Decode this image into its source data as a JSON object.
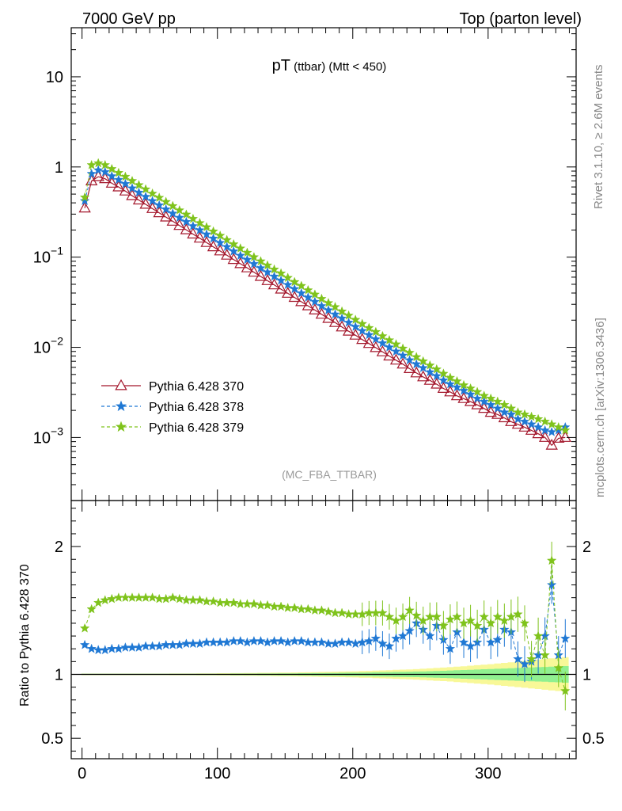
{
  "header": {
    "left": "7000 GeV pp",
    "right": "Top (parton level)"
  },
  "side": {
    "rivet": "Rivet 3.1.10, ≥ 2.6M events",
    "mcplots": "mcplots.cern.ch [arXiv:1306.3436]"
  },
  "main": {
    "title_main": "pT",
    "title_sub": " (ttbar) (Mtt < 450)",
    "analysis_tag": "(MC_FBA_TTBAR)",
    "yticks": [
      {
        "v": 10,
        "base": "10",
        "exp": ""
      },
      {
        "v": 1,
        "base": "1",
        "exp": ""
      },
      {
        "v": 0.1,
        "base": "10",
        "exp": "−1"
      },
      {
        "v": 0.01,
        "base": "10",
        "exp": "−2"
      },
      {
        "v": 0.001,
        "base": "10",
        "exp": "−3"
      }
    ]
  },
  "ratio": {
    "ylabel": "Ratio to Pythia 6.428 370",
    "ticks": [
      {
        "v": 2,
        "label": "2"
      },
      {
        "v": 1,
        "label": "1"
      },
      {
        "v": 0.5,
        "label": "0.5"
      }
    ]
  },
  "colors": {
    "s370": "#a3162b",
    "s378": "#1f78d4",
    "s379": "#7fc31c",
    "band_inner": "#90f090",
    "band_outer": "#f8f898"
  },
  "chart_data": {
    "type": "line",
    "log_y": true,
    "xlim": [
      -8,
      365
    ],
    "ylim": [
      0.0002,
      35
    ],
    "xticks": [
      0,
      100,
      200,
      300
    ],
    "ratio_ylim": [
      0.34,
      2.36
    ],
    "x": [
      2,
      7,
      12,
      17,
      22,
      27,
      32,
      37,
      42,
      47,
      52,
      57,
      62,
      67,
      72,
      77,
      82,
      87,
      92,
      97,
      102,
      107,
      112,
      117,
      122,
      127,
      132,
      137,
      142,
      147,
      152,
      157,
      162,
      167,
      172,
      177,
      182,
      187,
      192,
      197,
      202,
      207,
      212,
      217,
      222,
      227,
      232,
      237,
      242,
      247,
      252,
      257,
      262,
      267,
      272,
      277,
      282,
      287,
      292,
      297,
      302,
      307,
      312,
      317,
      322,
      327,
      332,
      337,
      342,
      347,
      352,
      357
    ],
    "series": [
      {
        "name": "Pythia 6.428 370",
        "values": [
          0.35,
          0.7,
          0.78,
          0.74,
          0.66,
          0.6,
          0.54,
          0.48,
          0.43,
          0.385,
          0.345,
          0.31,
          0.278,
          0.25,
          0.224,
          0.201,
          0.18,
          0.162,
          0.145,
          0.13,
          0.117,
          0.105,
          0.094,
          0.0845,
          0.076,
          0.068,
          0.061,
          0.0548,
          0.0492,
          0.0442,
          0.0397,
          0.0357,
          0.032,
          0.0288,
          0.0259,
          0.0232,
          0.0209,
          0.0188,
          0.0168,
          0.0151,
          0.0136,
          0.0122,
          0.011,
          0.0099,
          0.0089,
          0.008,
          0.0072,
          0.0065,
          0.0058,
          0.0052,
          0.0047,
          0.0043,
          0.0039,
          0.0035,
          0.0032,
          0.0029,
          0.0027,
          0.0025,
          0.0023,
          0.0021,
          0.0019,
          0.0018,
          0.00165,
          0.0015,
          0.0014,
          0.0013,
          0.0012,
          0.0011,
          0.001,
          0.00082,
          0.00098,
          0.001
        ]
      },
      {
        "name": "Pythia 6.428 378",
        "values": [
          0.42,
          0.84,
          0.92,
          0.88,
          0.79,
          0.72,
          0.65,
          0.58,
          0.52,
          0.467,
          0.419,
          0.376,
          0.339,
          0.305,
          0.274,
          0.246,
          0.221,
          0.199,
          0.179,
          0.161,
          0.144,
          0.13,
          0.116,
          0.104,
          0.0937,
          0.084,
          0.0755,
          0.068,
          0.061,
          0.055,
          0.0493,
          0.0443,
          0.0398,
          0.0357,
          0.032,
          0.0287,
          0.0258,
          0.0232,
          0.0209,
          0.0188,
          0.0169,
          0.0152,
          0.0137,
          0.0123,
          0.0111,
          0.01,
          0.009,
          0.0081,
          0.0072,
          0.0065,
          0.0059,
          0.0053,
          0.0048,
          0.0043,
          0.0039,
          0.0036,
          0.0033,
          0.003,
          0.0027,
          0.0025,
          0.0023,
          0.0021,
          0.0019,
          0.0018,
          0.0016,
          0.0015,
          0.0014,
          0.0013,
          0.0012,
          0.00115,
          0.0012,
          0.0013
        ]
      },
      {
        "name": "Pythia 6.428 379",
        "values": [
          0.46,
          1.05,
          1.1,
          1.05,
          0.95,
          0.86,
          0.78,
          0.7,
          0.63,
          0.565,
          0.507,
          0.456,
          0.41,
          0.369,
          0.331,
          0.297,
          0.266,
          0.239,
          0.215,
          0.193,
          0.173,
          0.155,
          0.139,
          0.125,
          0.112,
          0.1,
          0.09,
          0.081,
          0.073,
          0.066,
          0.059,
          0.053,
          0.048,
          0.043,
          0.0385,
          0.0345,
          0.031,
          0.028,
          0.025,
          0.0225,
          0.0202,
          0.0182,
          0.0164,
          0.0148,
          0.0133,
          0.012,
          0.0108,
          0.0097,
          0.0087,
          0.0078,
          0.007,
          0.0063,
          0.0057,
          0.0051,
          0.0046,
          0.0042,
          0.0038,
          0.0035,
          0.0032,
          0.0029,
          0.0027,
          0.0025,
          0.0023,
          0.0021,
          0.0019,
          0.0018,
          0.0017,
          0.0016,
          0.0015,
          0.0014,
          0.0013,
          0.0012
        ]
      }
    ],
    "ratio": {
      "s378": [
        1.23,
        1.2,
        1.19,
        1.19,
        1.2,
        1.2,
        1.21,
        1.21,
        1.21,
        1.22,
        1.22,
        1.22,
        1.23,
        1.23,
        1.23,
        1.24,
        1.24,
        1.24,
        1.25,
        1.25,
        1.25,
        1.25,
        1.26,
        1.26,
        1.25,
        1.26,
        1.26,
        1.25,
        1.26,
        1.26,
        1.25,
        1.26,
        1.26,
        1.25,
        1.25,
        1.25,
        1.24,
        1.24,
        1.25,
        1.25,
        1.24,
        1.25,
        1.26,
        1.28,
        1.24,
        1.22,
        1.28,
        1.3,
        1.34,
        1.4,
        1.35,
        1.3,
        1.38,
        1.27,
        1.2,
        1.33,
        1.25,
        1.22,
        1.25,
        1.35,
        1.25,
        1.27,
        1.35,
        1.33,
        1.12,
        1.08,
        1.1,
        1.15,
        1.3,
        1.7,
        1.15,
        1.28
      ],
      "s379": [
        1.36,
        1.51,
        1.56,
        1.58,
        1.59,
        1.6,
        1.6,
        1.6,
        1.6,
        1.6,
        1.6,
        1.59,
        1.59,
        1.6,
        1.59,
        1.58,
        1.58,
        1.58,
        1.57,
        1.57,
        1.56,
        1.56,
        1.56,
        1.55,
        1.55,
        1.55,
        1.54,
        1.54,
        1.53,
        1.53,
        1.52,
        1.52,
        1.51,
        1.51,
        1.5,
        1.5,
        1.49,
        1.48,
        1.48,
        1.47,
        1.47,
        1.47,
        1.48,
        1.48,
        1.48,
        1.45,
        1.42,
        1.45,
        1.5,
        1.46,
        1.42,
        1.45,
        1.45,
        1.38,
        1.43,
        1.45,
        1.4,
        1.42,
        1.38,
        1.45,
        1.4,
        1.45,
        1.42,
        1.45,
        1.47,
        1.4,
        1.12,
        1.3,
        1.15,
        1.89,
        1.05,
        0.87
      ],
      "band_inner": [
        0.004,
        0.004,
        0.004,
        0.004,
        0.004,
        0.004,
        0.004,
        0.004,
        0.004,
        0.004,
        0.004,
        0.004,
        0.004,
        0.004,
        0.004,
        0.004,
        0.005,
        0.005,
        0.005,
        0.005,
        0.005,
        0.005,
        0.006,
        0.006,
        0.006,
        0.006,
        0.007,
        0.007,
        0.007,
        0.008,
        0.008,
        0.008,
        0.009,
        0.009,
        0.01,
        0.01,
        0.011,
        0.011,
        0.012,
        0.013,
        0.013,
        0.014,
        0.015,
        0.016,
        0.017,
        0.018,
        0.019,
        0.02,
        0.021,
        0.022,
        0.023,
        0.025,
        0.026,
        0.028,
        0.03,
        0.032,
        0.034,
        0.036,
        0.038,
        0.04,
        0.042,
        0.044,
        0.046,
        0.048,
        0.05,
        0.052,
        0.054,
        0.056,
        0.058,
        0.06,
        0.062,
        0.065
      ],
      "band_outer": [
        0.006,
        0.006,
        0.006,
        0.006,
        0.006,
        0.006,
        0.006,
        0.006,
        0.006,
        0.006,
        0.006,
        0.006,
        0.006,
        0.007,
        0.007,
        0.007,
        0.007,
        0.008,
        0.008,
        0.008,
        0.009,
        0.009,
        0.01,
        0.01,
        0.011,
        0.011,
        0.012,
        0.012,
        0.013,
        0.014,
        0.014,
        0.015,
        0.016,
        0.017,
        0.018,
        0.019,
        0.02,
        0.021,
        0.022,
        0.023,
        0.024,
        0.026,
        0.027,
        0.029,
        0.031,
        0.033,
        0.035,
        0.037,
        0.039,
        0.041,
        0.044,
        0.047,
        0.05,
        0.053,
        0.056,
        0.06,
        0.064,
        0.068,
        0.072,
        0.076,
        0.08,
        0.085,
        0.09,
        0.095,
        0.1,
        0.105,
        0.11,
        0.115,
        0.12,
        0.125,
        0.13,
        0.135
      ]
    }
  }
}
